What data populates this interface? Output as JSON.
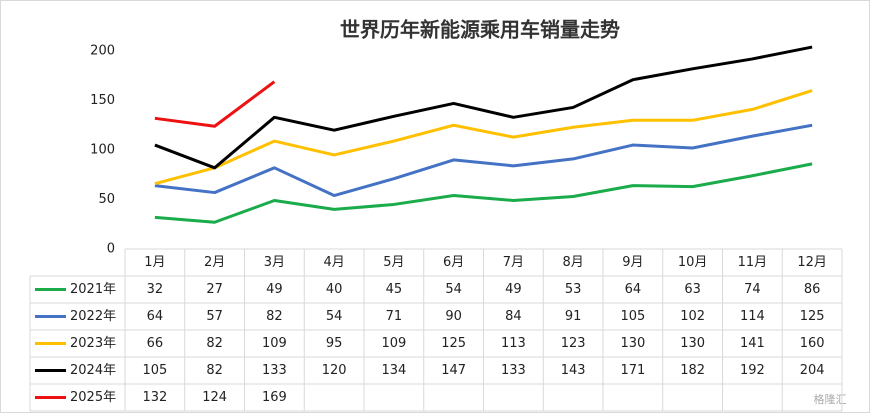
{
  "chart_data": {
    "type": "line",
    "title": "世界历年新能源乘用车销量走势",
    "categories": [
      "1月",
      "2月",
      "3月",
      "4月",
      "5月",
      "6月",
      "7月",
      "8月",
      "9月",
      "10月",
      "11月",
      "12月"
    ],
    "series": [
      {
        "name": "2021年",
        "color": "#1aab4b",
        "values": [
          32,
          27,
          49,
          40,
          45,
          54,
          49,
          53,
          64,
          63,
          74,
          86
        ]
      },
      {
        "name": "2022年",
        "color": "#4472c4",
        "values": [
          64,
          57,
          82,
          54,
          71,
          90,
          84,
          91,
          105,
          102,
          114,
          125
        ]
      },
      {
        "name": "2023年",
        "color": "#ffc000",
        "values": [
          66,
          82,
          109,
          95,
          109,
          125,
          113,
          123,
          130,
          130,
          141,
          160
        ]
      },
      {
        "name": "2024年",
        "color": "#000000",
        "values": [
          105,
          82,
          133,
          120,
          134,
          147,
          133,
          143,
          171,
          182,
          192,
          204
        ]
      },
      {
        "name": "2025年",
        "color": "#ee1111",
        "values": [
          132,
          124,
          169,
          null,
          null,
          null,
          null,
          null,
          null,
          null,
          null,
          null
        ]
      }
    ],
    "ylim": [
      0,
      200
    ],
    "yticks": [
      0,
      50,
      100,
      150,
      200
    ],
    "grid": false,
    "watermark": "格隆汇"
  }
}
